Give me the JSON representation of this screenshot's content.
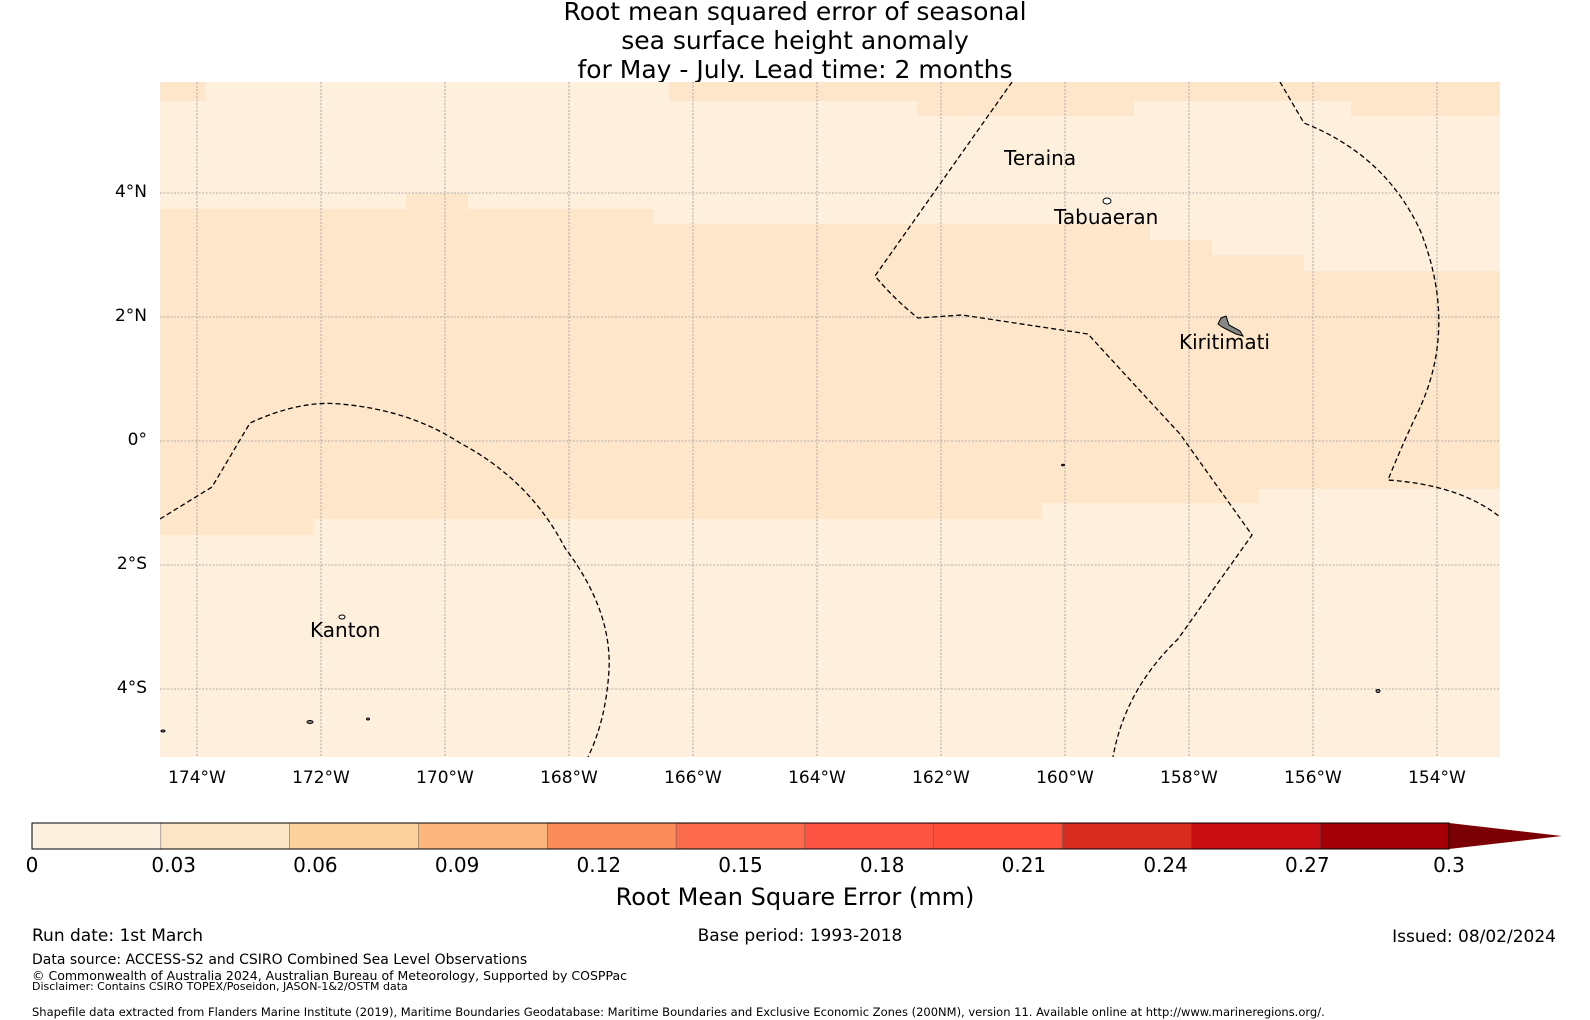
{
  "title": {
    "line1": "Root mean squared error of seasonal",
    "line2": "sea surface height anomaly",
    "line3": "for May - July. Lead time: 2 months"
  },
  "map": {
    "lat_ticks": [
      "4°N",
      "2°N",
      "0°",
      "2°S",
      "4°S"
    ],
    "lon_ticks": [
      "174°W",
      "172°W",
      "170°W",
      "168°W",
      "166°W",
      "164°W",
      "162°W",
      "160°W",
      "158°W",
      "156°W",
      "154°W"
    ],
    "places": {
      "teraina": "Teraina",
      "tabuaeran": "Tabuaeran",
      "kiritimati": "Kiritimati",
      "kanton": "Kanton"
    },
    "colors": {
      "level_0_03": "#fef0dd",
      "level_0_06": "#fde6c9",
      "grid": "#a0a0a0"
    }
  },
  "colorbar": {
    "label": "Root Mean Square Error (mm)",
    "ticks": [
      "0",
      "0.03",
      "0.06",
      "0.09",
      "0.12",
      "0.15",
      "0.18",
      "0.21",
      "0.24",
      "0.27",
      "0.3"
    ],
    "colors": [
      "#fff1df",
      "#fde5c8",
      "#fcd29d",
      "#fcb67d",
      "#fc8d5a",
      "#fb6a4a",
      "#fb5242",
      "#fe4e39",
      "#d92e1f",
      "#c70d12",
      "#a50008",
      "#7a0006"
    ]
  },
  "footer": {
    "run_date": "Run date: 1st March",
    "base_period": "Base period: 1993-2018",
    "issued": "Issued: 08/02/2024",
    "data_source": "Data source: ACCESS-S2 and CSIRO Combined Sea Level Observations",
    "copyright": "© Commonwealth of Australia 2024, Australian Bureau of Meteorology, Supported by COSPPac",
    "disclaimer": "Disclaimer: Contains CSIRO TOPEX/Poseidon, JASON-1&2/OSTM data",
    "shapefile": "Shapefile data extracted from Flanders Marine Institute (2019), Maritime Boundaries Geodatabase: Maritime Boundaries and Exclusive Economic Zones (200NM), version 11. Available online at http://www.marineregions.org/."
  }
}
